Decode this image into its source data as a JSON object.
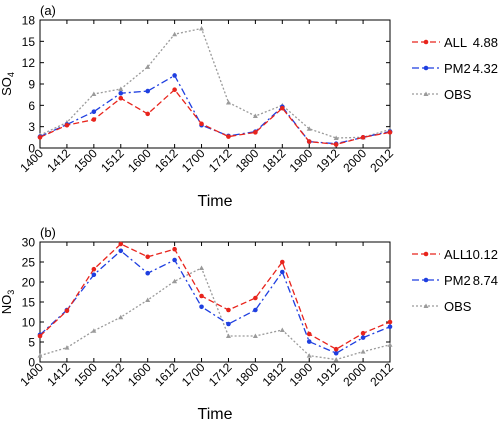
{
  "chart_data": [
    {
      "type": "line",
      "panel_label": "(a)",
      "ylabel_main": "SO",
      "ylabel_sub": "4",
      "xlabel": "Time",
      "categories": [
        "1400",
        "1412",
        "1500",
        "1512",
        "1600",
        "1612",
        "1700",
        "1712",
        "1800",
        "1812",
        "1900",
        "1912",
        "2000",
        "2012"
      ],
      "ylim": [
        0,
        18
      ],
      "yticks": [
        "0",
        "3",
        "6",
        "9",
        "12",
        "15",
        "18"
      ],
      "series": [
        {
          "name": "ALL",
          "legend_value": "4.88",
          "color": "#e8241c",
          "dash": "dash",
          "marker": "circle",
          "values": [
            1.5,
            3.2,
            4.0,
            7.0,
            4.8,
            8.2,
            3.4,
            1.6,
            2.2,
            5.6,
            0.9,
            0.5,
            1.5,
            2.2
          ]
        },
        {
          "name": "PM2",
          "legend_value": "4.32",
          "color": "#1f3fe0",
          "dash": "dashdot",
          "marker": "circle",
          "values": [
            1.6,
            3.3,
            5.1,
            7.7,
            8.0,
            10.2,
            3.2,
            1.7,
            2.3,
            5.8,
            0.9,
            0.6,
            1.5,
            2.3
          ]
        },
        {
          "name": "OBS",
          "legend_value": "",
          "color": "#9a9a9a",
          "dash": "dot",
          "marker": "triangle",
          "values": [
            1.8,
            3.6,
            7.6,
            8.3,
            11.4,
            16.0,
            16.8,
            6.4,
            4.5,
            6.0,
            2.7,
            1.4,
            1.5,
            2.6
          ]
        }
      ]
    },
    {
      "type": "line",
      "panel_label": "(b)",
      "ylabel_main": "NO",
      "ylabel_sub": "3",
      "xlabel": "Time",
      "categories": [
        "1400",
        "1412",
        "1500",
        "1512",
        "1600",
        "1612",
        "1700",
        "1712",
        "1800",
        "1812",
        "1900",
        "1912",
        "2000",
        "2012"
      ],
      "ylim": [
        0,
        30
      ],
      "yticks": [
        "0",
        "5",
        "10",
        "15",
        "20",
        "25",
        "30"
      ],
      "series": [
        {
          "name": "ALL",
          "legend_value": "10.12",
          "color": "#e8241c",
          "dash": "dash",
          "marker": "circle",
          "values": [
            6.5,
            12.8,
            23.2,
            29.5,
            26.3,
            28.2,
            16.5,
            13.0,
            16.0,
            25.0,
            7.0,
            3.2,
            7.2,
            10.0
          ]
        },
        {
          "name": "PM2",
          "legend_value": "8.74",
          "color": "#1f3fe0",
          "dash": "dashdot",
          "marker": "circle",
          "values": [
            6.8,
            13.0,
            21.8,
            27.8,
            22.2,
            25.5,
            13.8,
            9.5,
            13.0,
            22.5,
            5.1,
            2.2,
            6.1,
            8.8
          ]
        },
        {
          "name": "OBS",
          "legend_value": "",
          "color": "#9a9a9a",
          "dash": "dot",
          "marker": "triangle",
          "values": [
            1.6,
            3.6,
            7.8,
            11.2,
            15.5,
            20.2,
            23.5,
            6.5,
            6.5,
            8.0,
            1.6,
            0.6,
            2.6,
            4.3
          ]
        }
      ]
    }
  ]
}
